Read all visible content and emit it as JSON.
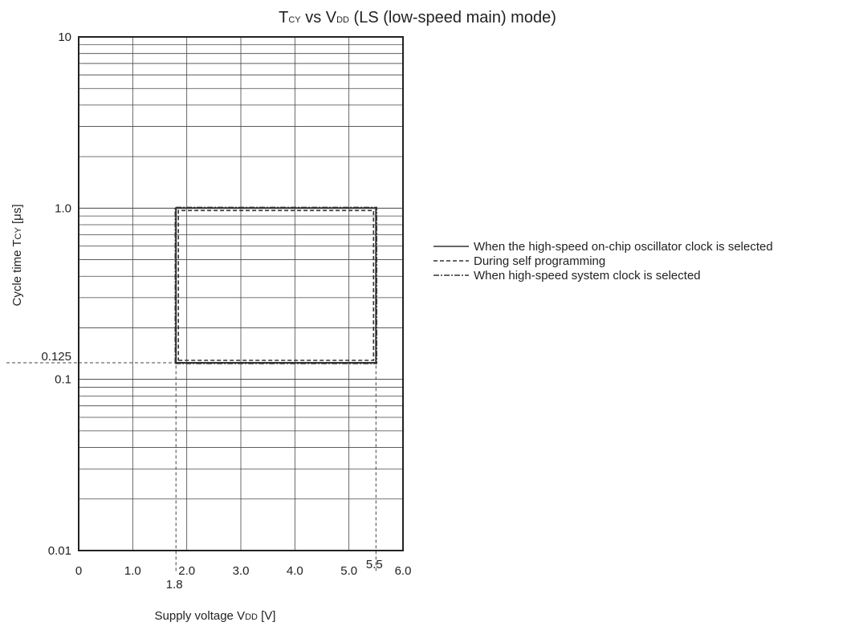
{
  "chart_data": {
    "type": "line",
    "title": {
      "pre": "T",
      "pre_sub": "CY",
      "mid": " vs V",
      "mid_sub": "DD",
      "post": " (LS (low-speed main) mode)"
    },
    "xlabel": {
      "pre": "Supply voltage V",
      "sub": "DD",
      "post": " [V]"
    },
    "ylabel": {
      "pre": "Cycle time T",
      "sub": "CY",
      "post": " [μs]"
    },
    "xlim": [
      0,
      6.0
    ],
    "ylim": [
      0.01,
      10
    ],
    "y_scale": "log",
    "grid": true,
    "x_ticks": [
      {
        "value": 0,
        "label": "0"
      },
      {
        "value": 1.0,
        "label": "1.0"
      },
      {
        "value": 2.0,
        "label": "2.0"
      },
      {
        "value": 3.0,
        "label": "3.0"
      },
      {
        "value": 4.0,
        "label": "4.0"
      },
      {
        "value": 5.0,
        "label": "5.0"
      },
      {
        "value": 6.0,
        "label": "6.0"
      }
    ],
    "y_ticks": [
      {
        "value": 10,
        "label": "10"
      },
      {
        "value": 1.0,
        "label": "1.0"
      },
      {
        "value": 0.1,
        "label": "0.1"
      },
      {
        "value": 0.01,
        "label": "0.01"
      }
    ],
    "annotations": [
      {
        "axis": "x",
        "value": 1.8,
        "label": "1.8"
      },
      {
        "axis": "x",
        "value": 5.5,
        "label": "5.5"
      },
      {
        "axis": "y",
        "value": 0.125,
        "label": "0.125"
      }
    ],
    "series": [
      {
        "name": "When the high-speed on-chip oscillator clock is selected",
        "style": "solid",
        "x": [
          1.8,
          5.5,
          5.5,
          1.8,
          1.8
        ],
        "y": [
          0.125,
          0.125,
          1.0,
          1.0,
          0.125
        ]
      },
      {
        "name": "During self programming",
        "style": "dashed",
        "x": [
          1.8,
          5.5,
          5.5,
          1.8,
          1.8
        ],
        "y": [
          0.125,
          0.125,
          1.0,
          1.0,
          0.125
        ]
      },
      {
        "name": "When high-speed system clock is selected",
        "style": "dashdot",
        "x": [
          1.8,
          5.5,
          5.5,
          1.8,
          1.8
        ],
        "y": [
          0.125,
          0.125,
          1.0,
          1.0,
          0.125
        ]
      }
    ],
    "legend_placement": "right",
    "colors": {
      "line": "#333333",
      "grid": "#444444",
      "axis": "#222222"
    }
  }
}
